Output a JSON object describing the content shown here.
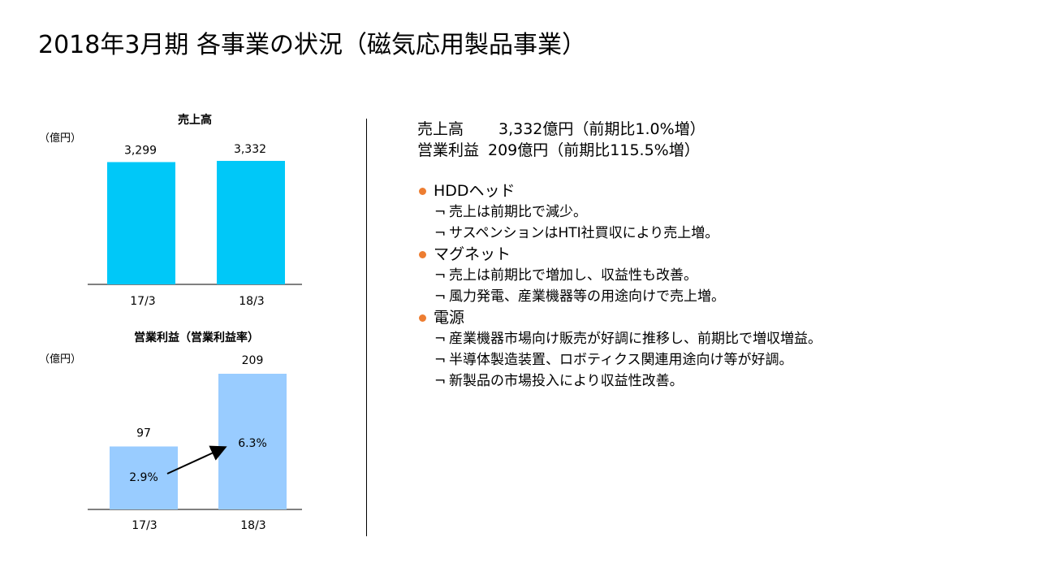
{
  "title": "2018年3月期 各事業の状況（磁気応用製品事業）",
  "summary": {
    "sales_label": "売上高",
    "sales_value": "3,332億円（前期比1.0%増）",
    "profit_label": "営業利益",
    "profit_value": "209億円（前期比115.5%増）"
  },
  "sections": [
    {
      "heading": "HDDヘッド",
      "items": [
        "売上は前期比で減少。",
        "サスペンションはHTI社買収により売上増。"
      ]
    },
    {
      "heading": "マグネット",
      "items": [
        "売上は前期比で増加し、収益性も改善。",
        "風力発電、産業機器等の用途向けで売上増。"
      ]
    },
    {
      "heading": "電源",
      "items": [
        "産業機器市場向け販売が好調に推移し、前期比で増収増益。",
        "半導体製造装置、ロボティクス関連用途向け等が好調。",
        "新製品の市場投入により収益性改善。"
      ]
    }
  ],
  "bullet_mark": "¬",
  "colors": {
    "sales_bar": "#00C8F8",
    "profit_bar": "#99CCFF",
    "bullet": "#ED7D31"
  },
  "chart_data": [
    {
      "type": "bar",
      "title": "売上高",
      "unit_label": "（億円）",
      "categories": [
        "17/3",
        "18/3"
      ],
      "values": [
        3299,
        3332
      ],
      "value_labels": [
        "3,299",
        "3,332"
      ],
      "ylim": [
        0,
        3332
      ]
    },
    {
      "type": "bar",
      "title": "営業利益（営業利益率）",
      "unit_label": "（億円）",
      "categories": [
        "17/3",
        "18/3"
      ],
      "values": [
        97,
        209
      ],
      "value_labels": [
        "97",
        "209"
      ],
      "margin_labels": [
        "2.9%",
        "6.3%"
      ],
      "ylim": [
        0,
        209
      ]
    }
  ]
}
